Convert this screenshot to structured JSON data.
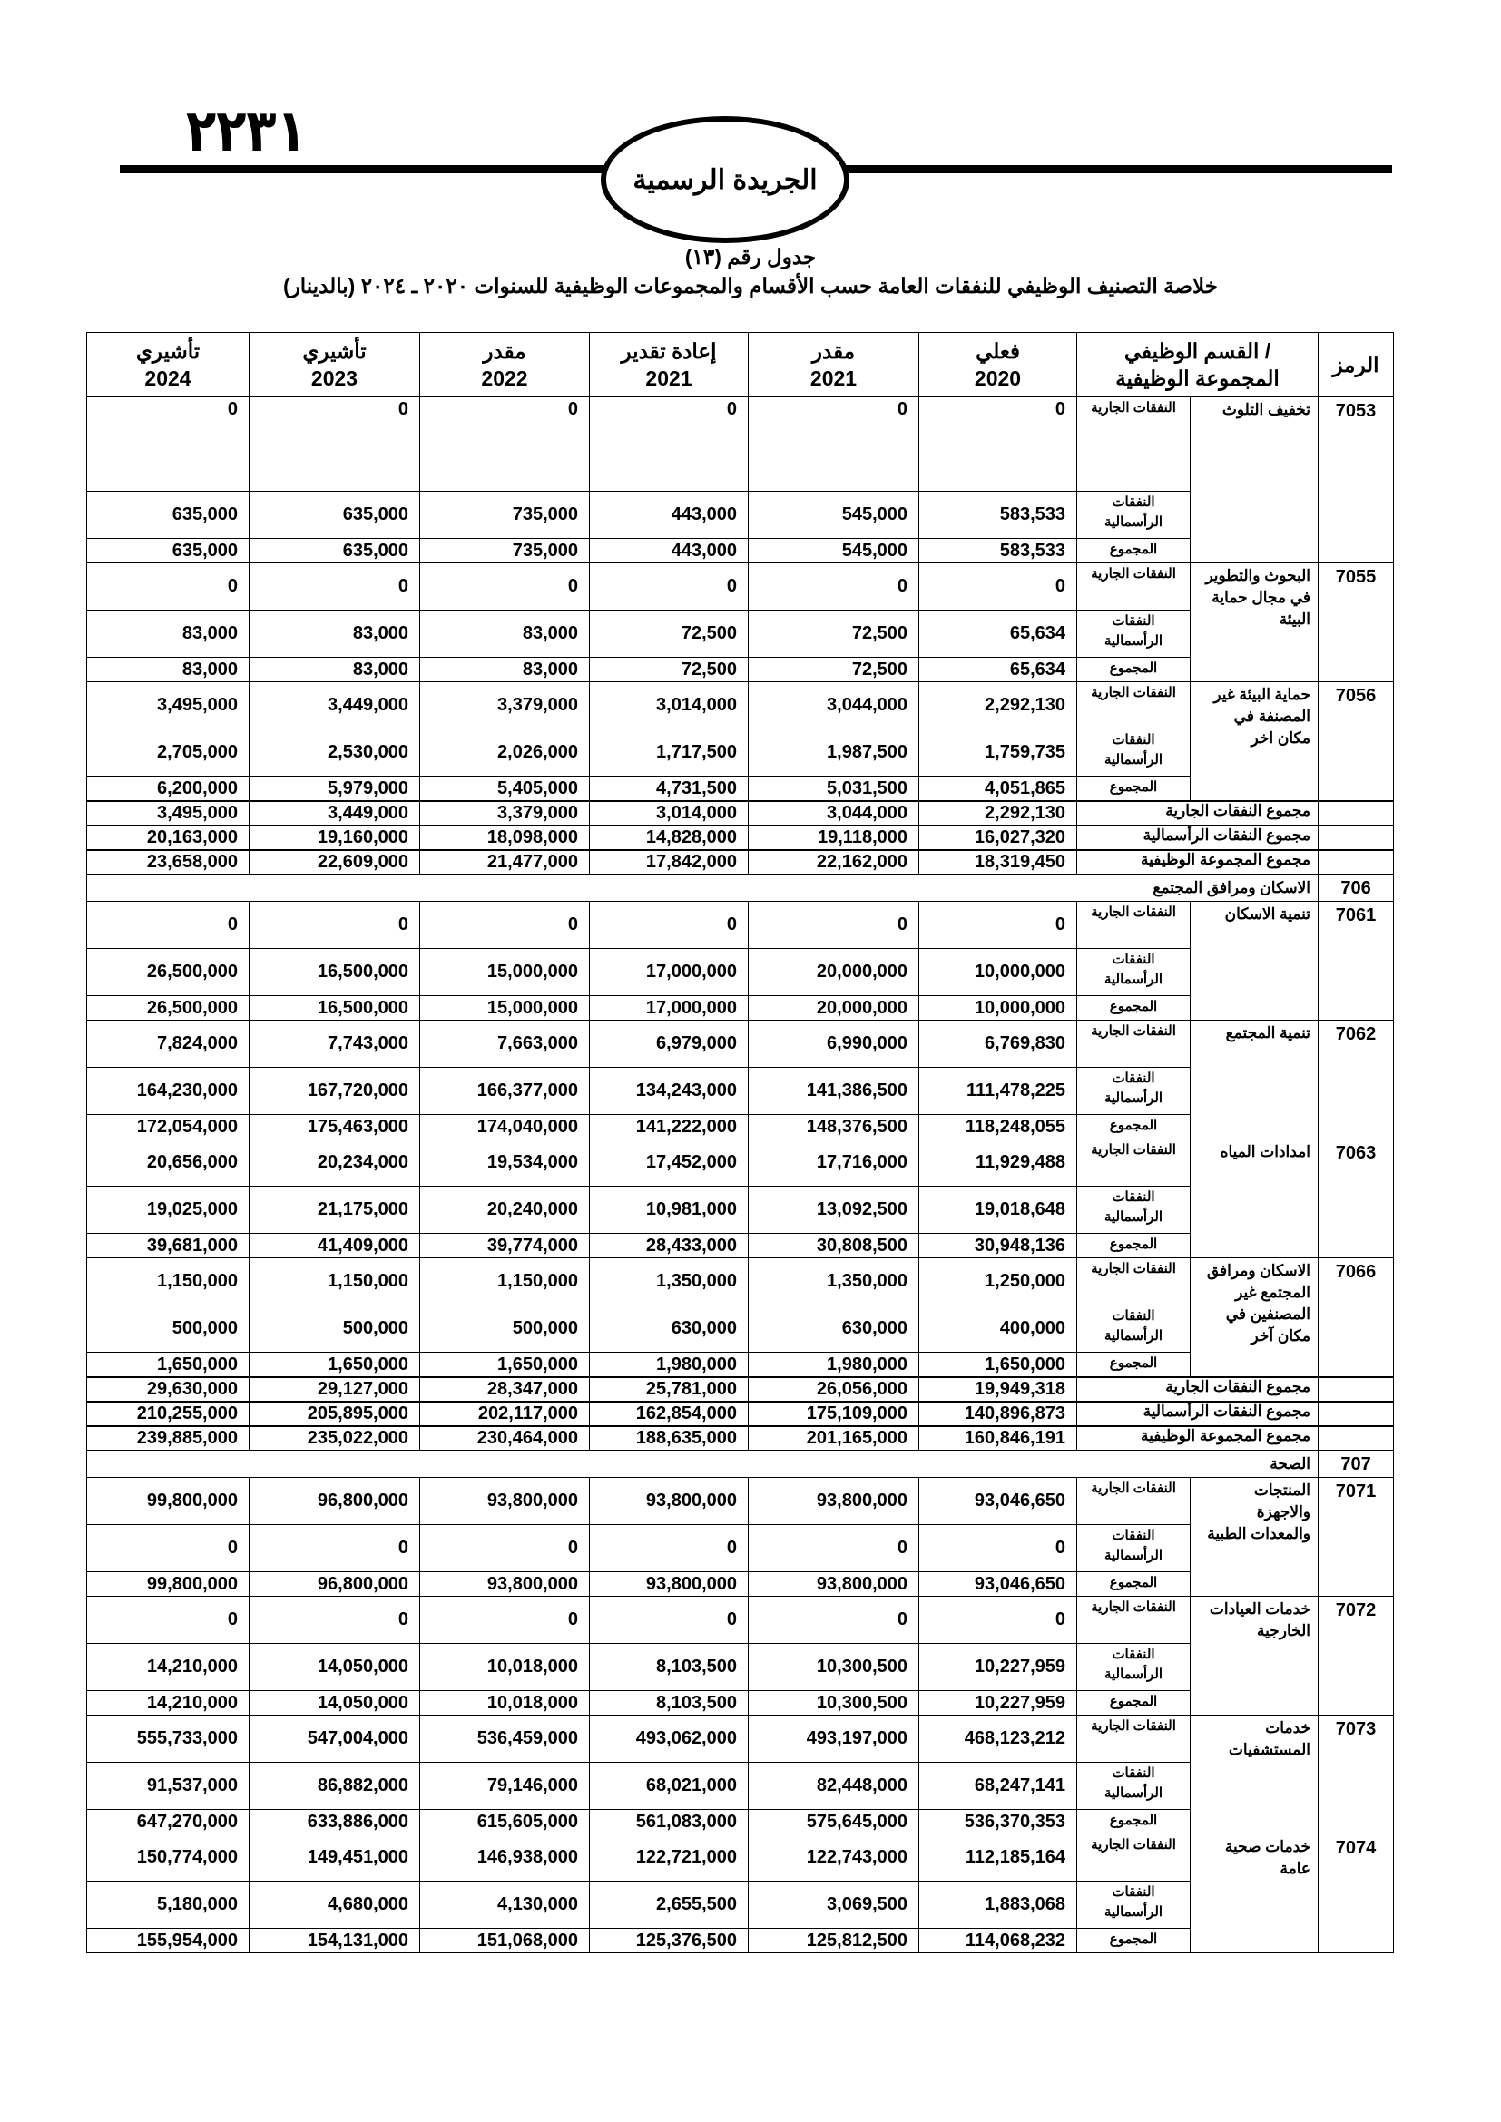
{
  "header": {
    "page_number": "٢٢٣١",
    "gazette_title": "الجريدة الرسمية",
    "table_number": "جدول رقم (١٣)",
    "table_title": "خلاصة التصنيف الوظيفي للنفقات العامة حسب الأقسام والمجموعات الوظيفية للسنوات ٢٠٢٠ ـ ٢٠٢٤ (بالدينار)"
  },
  "columns": {
    "code": "الرمز",
    "group": [
      "/ القسم الوظيفي",
      "المجموعة الوظيفية"
    ],
    "years": [
      {
        "label": "فعلي",
        "year": "2020"
      },
      {
        "label": "مقدر",
        "year": "2021"
      },
      {
        "label": "إعادة تقدير",
        "year": "2021"
      },
      {
        "label": "مقدر",
        "year": "2022"
      },
      {
        "label": "تأشيري",
        "year": "2023"
      },
      {
        "label": "تأشيري",
        "year": "2024"
      }
    ]
  },
  "labels": {
    "current": "النفقات الجارية",
    "capital": "النفقات الرأسمالية",
    "total": "المجموع",
    "sum_current": "مجموع النفقات الجارية",
    "sum_capital": "مجموع النفقات الرأسمالية",
    "sum_total": "مجموع المجموعة الوظيفية"
  },
  "sections": [
    {
      "header": null,
      "items": [
        {
          "code": "7053",
          "name": "تخفيف التلوث",
          "current": [
            "0",
            "0",
            "0",
            "0",
            "0",
            "0"
          ],
          "capital": [
            "583,533",
            "545,000",
            "443,000",
            "735,000",
            "635,000",
            "635,000"
          ],
          "total": [
            "583,533",
            "545,000",
            "443,000",
            "735,000",
            "635,000",
            "635,000"
          ]
        },
        {
          "code": "7055",
          "name": "البحوث والتطوير في مجال حماية البيئة",
          "current": [
            "0",
            "0",
            "0",
            "0",
            "0",
            "0"
          ],
          "capital": [
            "65,634",
            "72,500",
            "72,500",
            "83,000",
            "83,000",
            "83,000"
          ],
          "total": [
            "65,634",
            "72,500",
            "72,500",
            "83,000",
            "83,000",
            "83,000"
          ]
        },
        {
          "code": "7056",
          "name": "حماية البيئة غير المصنفة في مكان اخر",
          "current": [
            "2,292,130",
            "3,044,000",
            "3,014,000",
            "3,379,000",
            "3,449,000",
            "3,495,000"
          ],
          "capital": [
            "1,759,735",
            "1,987,500",
            "1,717,500",
            "2,026,000",
            "2,530,000",
            "2,705,000"
          ],
          "total": [
            "4,051,865",
            "5,031,500",
            "4,731,500",
            "5,405,000",
            "5,979,000",
            "6,200,000"
          ]
        }
      ],
      "summary": {
        "current": [
          "2,292,130",
          "3,044,000",
          "3,014,000",
          "3,379,000",
          "3,449,000",
          "3,495,000"
        ],
        "capital": [
          "16,027,320",
          "19,118,000",
          "14,828,000",
          "18,098,000",
          "19,160,000",
          "20,163,000"
        ],
        "total": [
          "18,319,450",
          "22,162,000",
          "17,842,000",
          "21,477,000",
          "22,609,000",
          "23,658,000"
        ]
      }
    },
    {
      "header": {
        "code": "706",
        "name": "الاسكان ومرافق المجتمع"
      },
      "items": [
        {
          "code": "7061",
          "name": "تنمية الاسكان",
          "current": [
            "0",
            "0",
            "0",
            "0",
            "0",
            "0"
          ],
          "capital": [
            "10,000,000",
            "20,000,000",
            "17,000,000",
            "15,000,000",
            "16,500,000",
            "26,500,000"
          ],
          "total": [
            "10,000,000",
            "20,000,000",
            "17,000,000",
            "15,000,000",
            "16,500,000",
            "26,500,000"
          ]
        },
        {
          "code": "7062",
          "name": "تنمية المجتمع",
          "current": [
            "6,769,830",
            "6,990,000",
            "6,979,000",
            "7,663,000",
            "7,743,000",
            "7,824,000"
          ],
          "capital": [
            "111,478,225",
            "141,386,500",
            "134,243,000",
            "166,377,000",
            "167,720,000",
            "164,230,000"
          ],
          "total": [
            "118,248,055",
            "148,376,500",
            "141,222,000",
            "174,040,000",
            "175,463,000",
            "172,054,000"
          ]
        },
        {
          "code": "7063",
          "name": "امدادات المياه",
          "current": [
            "11,929,488",
            "17,716,000",
            "17,452,000",
            "19,534,000",
            "20,234,000",
            "20,656,000"
          ],
          "capital": [
            "19,018,648",
            "13,092,500",
            "10,981,000",
            "20,240,000",
            "21,175,000",
            "19,025,000"
          ],
          "total": [
            "30,948,136",
            "30,808,500",
            "28,433,000",
            "39,774,000",
            "41,409,000",
            "39,681,000"
          ]
        },
        {
          "code": "7066",
          "name": "الاسكان ومرافق المجتمع غير المصنفين في مكان آخر",
          "current": [
            "1,250,000",
            "1,350,000",
            "1,350,000",
            "1,150,000",
            "1,150,000",
            "1,150,000"
          ],
          "capital": [
            "400,000",
            "630,000",
            "630,000",
            "500,000",
            "500,000",
            "500,000"
          ],
          "total": [
            "1,650,000",
            "1,980,000",
            "1,980,000",
            "1,650,000",
            "1,650,000",
            "1,650,000"
          ]
        }
      ],
      "summary": {
        "current": [
          "19,949,318",
          "26,056,000",
          "25,781,000",
          "28,347,000",
          "29,127,000",
          "29,630,000"
        ],
        "capital": [
          "140,896,873",
          "175,109,000",
          "162,854,000",
          "202,117,000",
          "205,895,000",
          "210,255,000"
        ],
        "total": [
          "160,846,191",
          "201,165,000",
          "188,635,000",
          "230,464,000",
          "235,022,000",
          "239,885,000"
        ]
      }
    },
    {
      "header": {
        "code": "707",
        "name": "الصحة"
      },
      "items": [
        {
          "code": "7071",
          "name": "المنتجات والاجهزة والمعدات الطبية",
          "current": [
            "93,046,650",
            "93,800,000",
            "93,800,000",
            "93,800,000",
            "96,800,000",
            "99,800,000"
          ],
          "capital": [
            "0",
            "0",
            "0",
            "0",
            "0",
            "0"
          ],
          "total": [
            "93,046,650",
            "93,800,000",
            "93,800,000",
            "93,800,000",
            "96,800,000",
            "99,800,000"
          ]
        },
        {
          "code": "7072",
          "name": "خدمات العيادات الخارجية",
          "current": [
            "0",
            "0",
            "0",
            "0",
            "0",
            "0"
          ],
          "capital": [
            "10,227,959",
            "10,300,500",
            "8,103,500",
            "10,018,000",
            "14,050,000",
            "14,210,000"
          ],
          "total": [
            "10,227,959",
            "10,300,500",
            "8,103,500",
            "10,018,000",
            "14,050,000",
            "14,210,000"
          ]
        },
        {
          "code": "7073",
          "name": "خدمات المستشفيات",
          "current": [
            "468,123,212",
            "493,197,000",
            "493,062,000",
            "536,459,000",
            "547,004,000",
            "555,733,000"
          ],
          "capital": [
            "68,247,141",
            "82,448,000",
            "68,021,000",
            "79,146,000",
            "86,882,000",
            "91,537,000"
          ],
          "total": [
            "536,370,353",
            "575,645,000",
            "561,083,000",
            "615,605,000",
            "633,886,000",
            "647,270,000"
          ]
        },
        {
          "code": "7074",
          "name": "خدمات صحية عامة",
          "current": [
            "112,185,164",
            "122,743,000",
            "122,721,000",
            "146,938,000",
            "149,451,000",
            "150,774,000"
          ],
          "capital": [
            "1,883,068",
            "3,069,500",
            "2,655,500",
            "4,130,000",
            "4,680,000",
            "5,180,000"
          ],
          "total": [
            "114,068,232",
            "125,812,500",
            "125,376,500",
            "151,068,000",
            "154,131,000",
            "155,954,000"
          ]
        }
      ],
      "summary": null
    }
  ]
}
